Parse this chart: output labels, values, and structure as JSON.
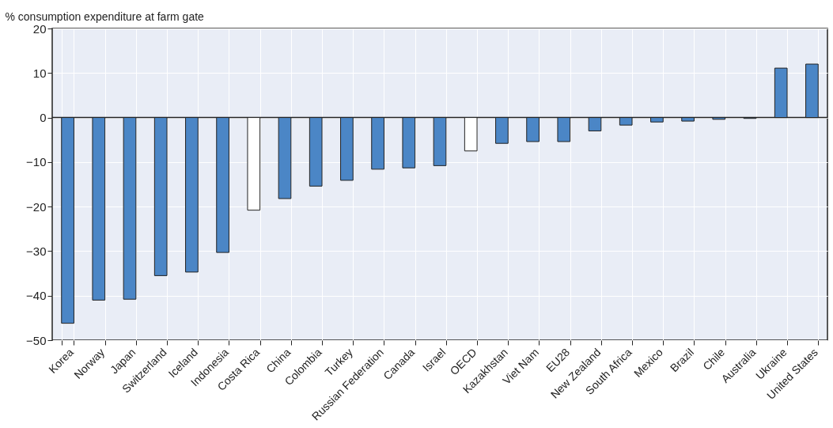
{
  "chart_data": {
    "type": "bar",
    "ylabel": "% consumption expenditure at farm gate",
    "categories": [
      "Korea",
      "Norway",
      "Japan",
      "Switzerland",
      "Iceland",
      "Indonesia",
      "Costa Rica",
      "China",
      "Colombia",
      "Turkey",
      "Russian Federation",
      "Canada",
      "Israel",
      "OECD",
      "Kazakhstan",
      "Viet Nam",
      "EU28",
      "New Zealand",
      "South Africa",
      "Mexico",
      "Brazil",
      "Chile",
      "Australia",
      "Ukraine",
      "United States"
    ],
    "values": [
      -46.2,
      -41,
      -40.8,
      -35.5,
      -34.7,
      -30.3,
      -20.8,
      -18.2,
      -15.4,
      -14.1,
      -11.6,
      -11.3,
      -10.8,
      -7.5,
      -5.8,
      -5.4,
      -5.4,
      -3,
      -1.7,
      -1,
      -0.8,
      -0.4,
      -0.2,
      11.1,
      12
    ],
    "colors": [
      "#4b86c6",
      "#4b86c6",
      "#4b86c6",
      "#4b86c6",
      "#4b86c6",
      "#4b86c6",
      "#ffffff",
      "#4b86c6",
      "#4b86c6",
      "#4b86c6",
      "#4b86c6",
      "#4b86c6",
      "#4b86c6",
      "#ffffff",
      "#4b86c6",
      "#4b86c6",
      "#4b86c6",
      "#4b86c6",
      "#4b86c6",
      "#4b86c6",
      "#4b86c6",
      "#4b86c6",
      "#4b86c6",
      "#4b86c6",
      "#4b86c6"
    ],
    "ylim": [
      -50,
      20
    ],
    "yticks": [
      -50,
      -40,
      -30,
      -20,
      -10,
      0,
      10,
      20
    ],
    "grid": true,
    "ref_lines": [
      {
        "axis": "y",
        "value": 0
      }
    ]
  }
}
